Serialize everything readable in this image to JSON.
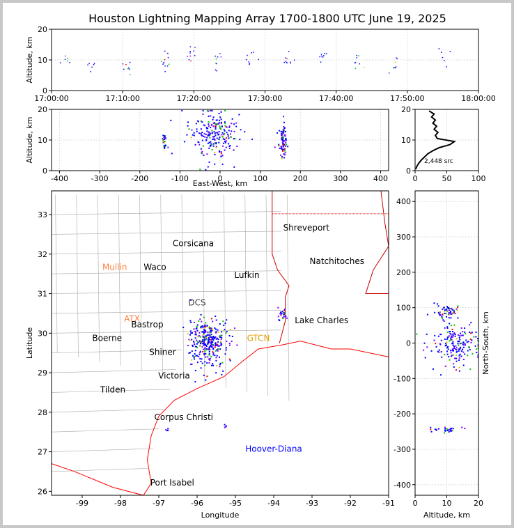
{
  "title": "Houston Lightning Mapping Array 1700-1800 UTC June 19, 2025",
  "colors": {
    "src_low": "#0000ff",
    "src_mid": "#00c000",
    "src_hot": "#ff0000",
    "coast": "#ff0000",
    "county": "#aaaaaa",
    "state": "#cc0000"
  },
  "chart_data": [
    {
      "type": "scatter",
      "panel": "time-height",
      "xlabel": "",
      "ylabel": "Altitude, km",
      "xticks": [
        "17:00:00",
        "17:10:00",
        "17:20:00",
        "17:30:00",
        "17:40:00",
        "17:50:00",
        "18:00:00"
      ],
      "xlim_minutes": [
        0,
        60
      ],
      "ylim": [
        0,
        20
      ],
      "yticks": [
        0,
        10,
        20
      ],
      "clusters": [
        {
          "t": 2,
          "alt": 10,
          "n": 6
        },
        {
          "t": 5.5,
          "alt": 9,
          "n": 6
        },
        {
          "t": 10.5,
          "alt": 8,
          "n": 8
        },
        {
          "t": 16,
          "alt": 10,
          "n": 12
        },
        {
          "t": 19.5,
          "alt": 12,
          "n": 10
        },
        {
          "t": 23,
          "alt": 10,
          "n": 10
        },
        {
          "t": 28,
          "alt": 10,
          "n": 8
        },
        {
          "t": 33,
          "alt": 10,
          "n": 10
        },
        {
          "t": 38,
          "alt": 10,
          "n": 8
        },
        {
          "t": 43,
          "alt": 11,
          "n": 8
        },
        {
          "t": 48,
          "alt": 8,
          "n": 8
        },
        {
          "t": 55,
          "alt": 10,
          "n": 6
        }
      ]
    },
    {
      "type": "scatter",
      "panel": "east-west-height",
      "xlabel": "East-West, km",
      "ylabel": "Altitude, km",
      "xlim": [
        -420,
        420
      ],
      "xticks": [
        -400,
        -300,
        -200,
        -100,
        0,
        100,
        200,
        300,
        400
      ],
      "ylim": [
        0,
        20
      ],
      "yticks": [
        0,
        10,
        20
      ],
      "clusters": [
        {
          "x": -140,
          "alt": 10,
          "sx": 3,
          "sa": 2,
          "n": 25
        },
        {
          "x": -20,
          "alt": 12,
          "sx": 30,
          "sa": 4,
          "n": 220
        },
        {
          "x": 155,
          "alt": 10,
          "sx": 5,
          "sa": 2.5,
          "n": 90
        }
      ]
    },
    {
      "type": "line",
      "panel": "altitude-histogram",
      "xlim": [
        0,
        100
      ],
      "xticks": [
        0,
        50,
        100
      ],
      "ylim": [
        0,
        20
      ],
      "yticks": [
        0,
        10,
        20
      ],
      "annotation": "2,448 src",
      "profile": [
        [
          1,
          0.5
        ],
        [
          3,
          1.5
        ],
        [
          6,
          2.5
        ],
        [
          10,
          3.5
        ],
        [
          15,
          4.5
        ],
        [
          20,
          5.5
        ],
        [
          28,
          6.5
        ],
        [
          38,
          7.5
        ],
        [
          55,
          8.5
        ],
        [
          62,
          9.5
        ],
        [
          35,
          10.5
        ],
        [
          32,
          11.5
        ],
        [
          36,
          12.5
        ],
        [
          30,
          13.5
        ],
        [
          34,
          14.5
        ],
        [
          28,
          15.5
        ],
        [
          32,
          16.5
        ],
        [
          26,
          17.5
        ],
        [
          30,
          18.5
        ],
        [
          22,
          19.5
        ]
      ]
    },
    {
      "type": "scatter",
      "panel": "plan-view-map",
      "xlabel": "Longitude",
      "ylabel": "Latitude",
      "xlim": [
        -99.8,
        -91
      ],
      "xticks": [
        -99,
        -98,
        -97,
        -96,
        -95,
        -94,
        -93,
        -92,
        -91
      ],
      "ylim": [
        25.9,
        33.6
      ],
      "yticks": [
        26,
        27,
        28,
        29,
        30,
        31,
        32,
        33
      ],
      "clusters": [
        {
          "lon": -95.75,
          "lat": 29.8,
          "slon": 0.28,
          "slat": 0.3,
          "n": 320
        },
        {
          "lon": -93.8,
          "lat": 30.5,
          "slon": 0.06,
          "slat": 0.1,
          "n": 25
        },
        {
          "lon": -95.3,
          "lat": 27.65,
          "slon": 0.02,
          "slat": 0.02,
          "n": 4
        },
        {
          "lon": -96.8,
          "lat": 27.55,
          "slon": 0.02,
          "slat": 0.02,
          "n": 4
        }
      ],
      "cities": [
        {
          "name": "Shreveport",
          "lon": -93.15,
          "lat": 32.6,
          "color": "#000000"
        },
        {
          "name": "Corsicana",
          "lon": -96.1,
          "lat": 32.2,
          "color": "#000000"
        },
        {
          "name": "Natchitoches",
          "lon": -92.35,
          "lat": 31.75,
          "color": "#000000"
        },
        {
          "name": "Mullin",
          "lon": -98.15,
          "lat": 31.6,
          "color": "#ff8040"
        },
        {
          "name": "Waco",
          "lon": -97.1,
          "lat": 31.6,
          "color": "#000000"
        },
        {
          "name": "Lufkin",
          "lon": -94.7,
          "lat": 31.4,
          "color": "#000000"
        },
        {
          "name": "DCS",
          "lon": -96.0,
          "lat": 30.7,
          "color": "#404040"
        },
        {
          "name": "ATX",
          "lon": -97.7,
          "lat": 30.3,
          "color": "#ff8040"
        },
        {
          "name": "Bastrop",
          "lon": -97.3,
          "lat": 30.15,
          "color": "#000000"
        },
        {
          "name": "Lake Charles",
          "lon": -92.75,
          "lat": 30.25,
          "color": "#000000"
        },
        {
          "name": "Boerne",
          "lon": -98.35,
          "lat": 29.8,
          "color": "#000000"
        },
        {
          "name": "GTCN",
          "lon": -94.4,
          "lat": 29.8,
          "color": "#e0a000"
        },
        {
          "name": "Shiner",
          "lon": -96.9,
          "lat": 29.45,
          "color": "#000000"
        },
        {
          "name": "Victoria",
          "lon": -96.6,
          "lat": 28.85,
          "color": "#000000"
        },
        {
          "name": "Tilden",
          "lon": -98.2,
          "lat": 28.5,
          "color": "#000000"
        },
        {
          "name": "Corpus Christi",
          "lon": -96.35,
          "lat": 27.8,
          "color": "#000000"
        },
        {
          "name": "Hoover-Diana",
          "lon": -94.0,
          "lat": 27.0,
          "color": "#0000ff"
        },
        {
          "name": "Port Isabel",
          "lon": -96.65,
          "lat": 26.15,
          "color": "#000000"
        }
      ]
    },
    {
      "type": "scatter",
      "panel": "north-south-height",
      "xlabel": "Altitude, km",
      "ylabel": "North-South, km",
      "xlim": [
        0,
        20
      ],
      "xticks": [
        0,
        10,
        20
      ],
      "ylim": [
        -430,
        430
      ],
      "yticks": [
        -400,
        -300,
        -200,
        -100,
        0,
        100,
        200,
        300,
        400
      ],
      "clusters": [
        {
          "alt": 10,
          "y": 90,
          "sa": 2,
          "sy": 10,
          "n": 60
        },
        {
          "alt": 13,
          "y": 0,
          "sa": 4,
          "sy": 30,
          "n": 180
        },
        {
          "alt": 10,
          "y": -243,
          "sa": 2.5,
          "sy": 4,
          "n": 30
        }
      ]
    }
  ]
}
